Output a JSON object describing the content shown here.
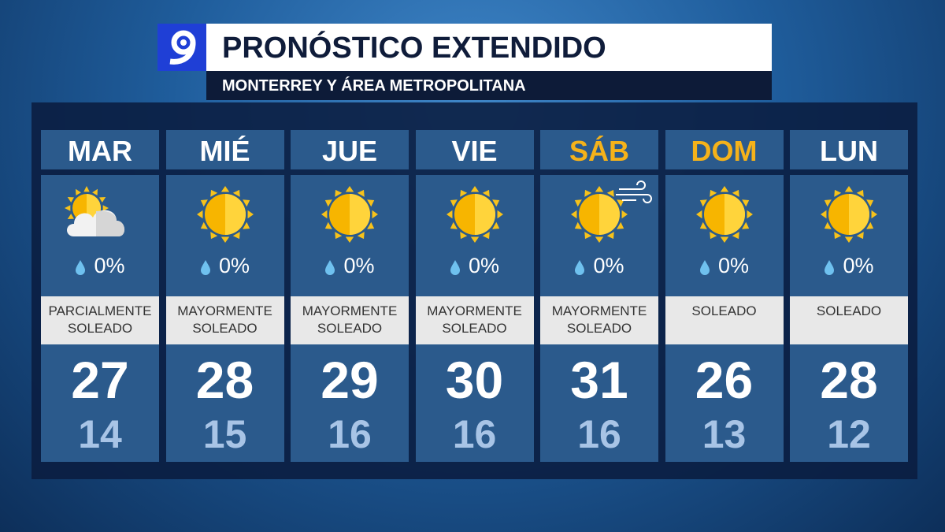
{
  "header": {
    "title": "PRONÓSTICO EXTENDIDO",
    "subtitle": "MONTERREY Y ÁREA METROPOLITANA"
  },
  "days": [
    {
      "day": "MAR",
      "precip": "0%",
      "condition": "PARCIALMENTE SOLEADO",
      "high": 27,
      "low": 14
    },
    {
      "day": "MIÉ",
      "precip": "0%",
      "condition": "MAYORMENTE SOLEADO",
      "high": 28,
      "low": 15
    },
    {
      "day": "JUE",
      "precip": "0%",
      "condition": "MAYORMENTE SOLEADO",
      "high": 29,
      "low": 16
    },
    {
      "day": "VIE",
      "precip": "0%",
      "condition": "MAYORMENTE SOLEADO",
      "high": 30,
      "low": 16
    },
    {
      "day": "SÁB",
      "precip": "0%",
      "condition": "MAYORMENTE SOLEADO",
      "high": 31,
      "low": 16
    },
    {
      "day": "DOM",
      "precip": "0%",
      "condition": "SOLEADO",
      "high": 26,
      "low": 13
    },
    {
      "day": "LUN",
      "precip": "0%",
      "condition": "SOLEADO",
      "high": 28,
      "low": 12
    }
  ]
}
